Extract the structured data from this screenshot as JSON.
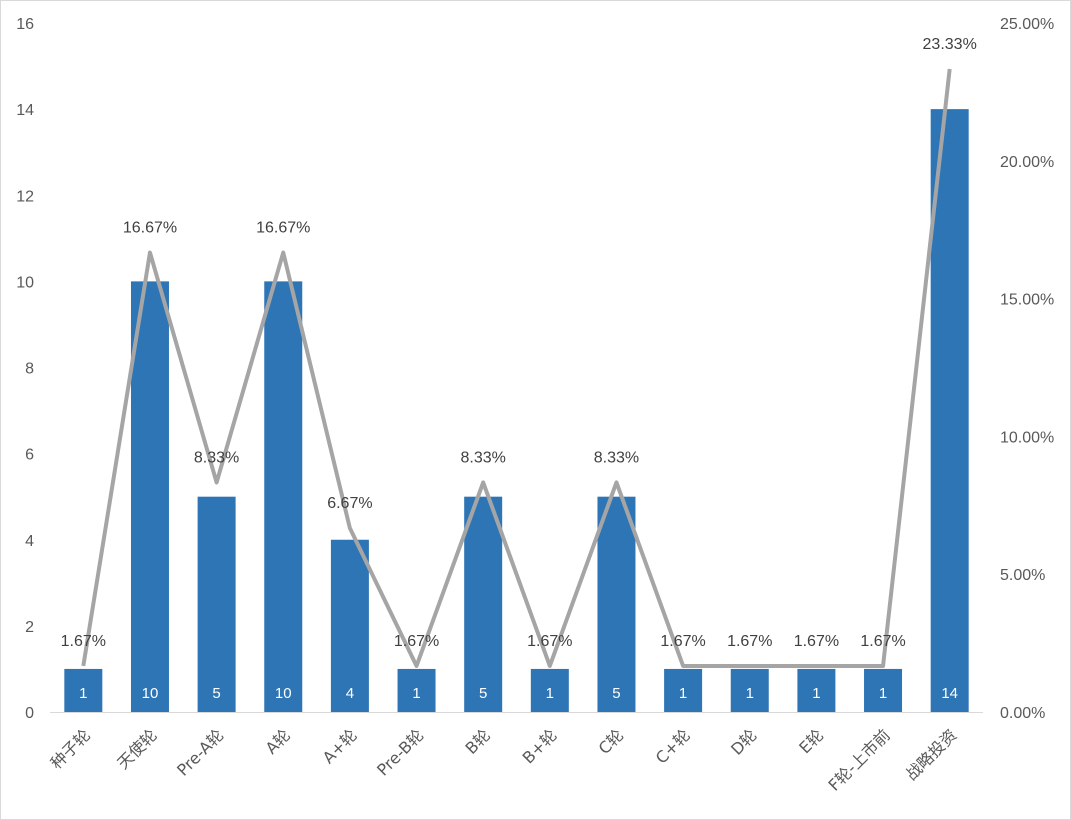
{
  "chart_data": {
    "type": "bar",
    "categories": [
      "种子轮",
      "天使轮",
      "Pre-A轮",
      "A轮",
      "A+轮",
      "Pre-B轮",
      "B轮",
      "B+轮",
      "C轮",
      "C+轮",
      "D轮",
      "E轮",
      "F轮-上市前",
      "战略投资"
    ],
    "series": [
      {
        "type": "bar",
        "axis": "left",
        "color": "#2e75b6",
        "values": [
          1,
          10,
          5,
          10,
          4,
          1,
          5,
          1,
          5,
          1,
          1,
          1,
          1,
          14
        ],
        "data_labels": [
          "1",
          "10",
          "5",
          "10",
          "4",
          "1",
          "5",
          "1",
          "5",
          "1",
          "1",
          "1",
          "1",
          "14"
        ]
      },
      {
        "type": "line",
        "axis": "right",
        "color": "#a5a5a5",
        "values": [
          1.67,
          16.67,
          8.33,
          16.67,
          6.67,
          1.67,
          8.33,
          1.67,
          8.33,
          1.67,
          1.67,
          1.67,
          1.67,
          23.33
        ],
        "data_labels": [
          "1.67%",
          "16.67%",
          "8.33%",
          "16.67%",
          "6.67%",
          "1.67%",
          "8.33%",
          "1.67%",
          "8.33%",
          "1.67%",
          "1.67%",
          "1.67%",
          "1.67%",
          "23.33%"
        ]
      }
    ],
    "y_left": {
      "ylim": [
        0,
        16
      ],
      "ticks": [
        "0",
        "2",
        "4",
        "6",
        "8",
        "10",
        "12",
        "14",
        "16"
      ]
    },
    "y_right": {
      "ylim": [
        0,
        25
      ],
      "ticks": [
        "0.00%",
        "5.00%",
        "10.00%",
        "15.00%",
        "20.00%",
        "25.00%"
      ]
    },
    "grid": false,
    "legend": "none",
    "title": "",
    "xlabel": "",
    "ylabel": ""
  }
}
